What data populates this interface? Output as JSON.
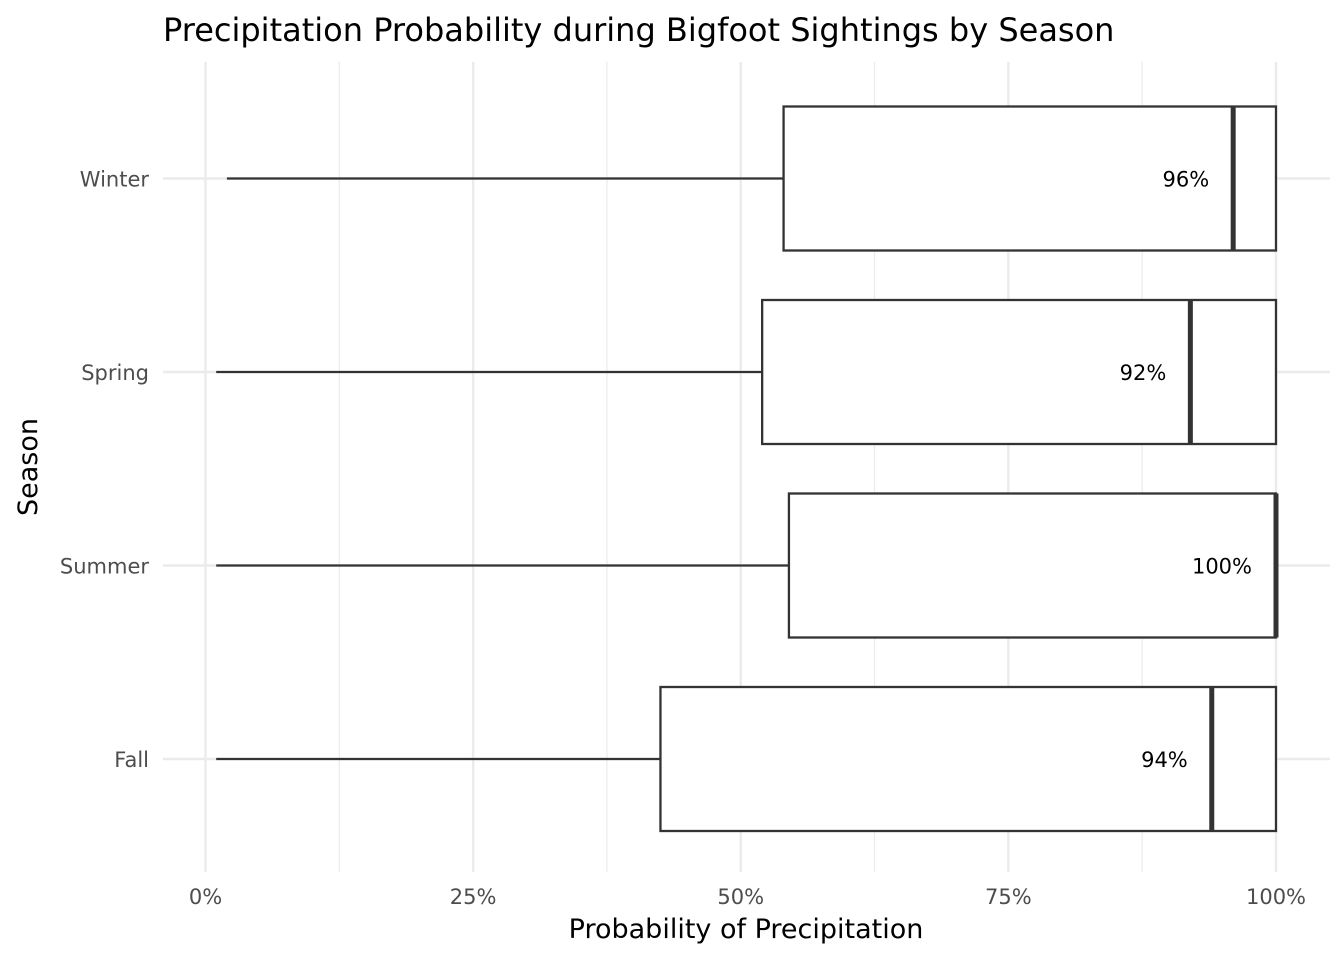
{
  "chart_data": {
    "type": "box",
    "orientation": "horizontal",
    "title": "Precipitation Probability during Bigfoot Sightings by Season",
    "xlabel": "Probability of Precipitation",
    "ylabel": "Season",
    "xlim": [
      0,
      100
    ],
    "x_ticks": [
      0,
      25,
      50,
      75,
      100
    ],
    "x_tick_labels": [
      "0%",
      "25%",
      "50%",
      "75%",
      "100%"
    ],
    "grid": true,
    "categories": [
      "Fall",
      "Summer",
      "Spring",
      "Winter"
    ],
    "boxes": [
      {
        "category": "Fall",
        "whisker_low": 1,
        "q1": 42.5,
        "median": 94,
        "q3": 100,
        "whisker_high": 100,
        "label": "94%"
      },
      {
        "category": "Summer",
        "whisker_low": 1,
        "q1": 54.5,
        "median": 100,
        "q3": 100,
        "whisker_high": 100,
        "label": "100%"
      },
      {
        "category": "Spring",
        "whisker_low": 1,
        "q1": 52,
        "median": 92,
        "q3": 100,
        "whisker_high": 100,
        "label": "92%"
      },
      {
        "category": "Winter",
        "whisker_low": 2,
        "q1": 54,
        "median": 96,
        "q3": 100,
        "whisker_high": 100,
        "label": "96%"
      }
    ],
    "colors": {
      "box_fill": "#ffffff",
      "box_stroke": "#333333",
      "grid": "#ebebeb"
    }
  }
}
